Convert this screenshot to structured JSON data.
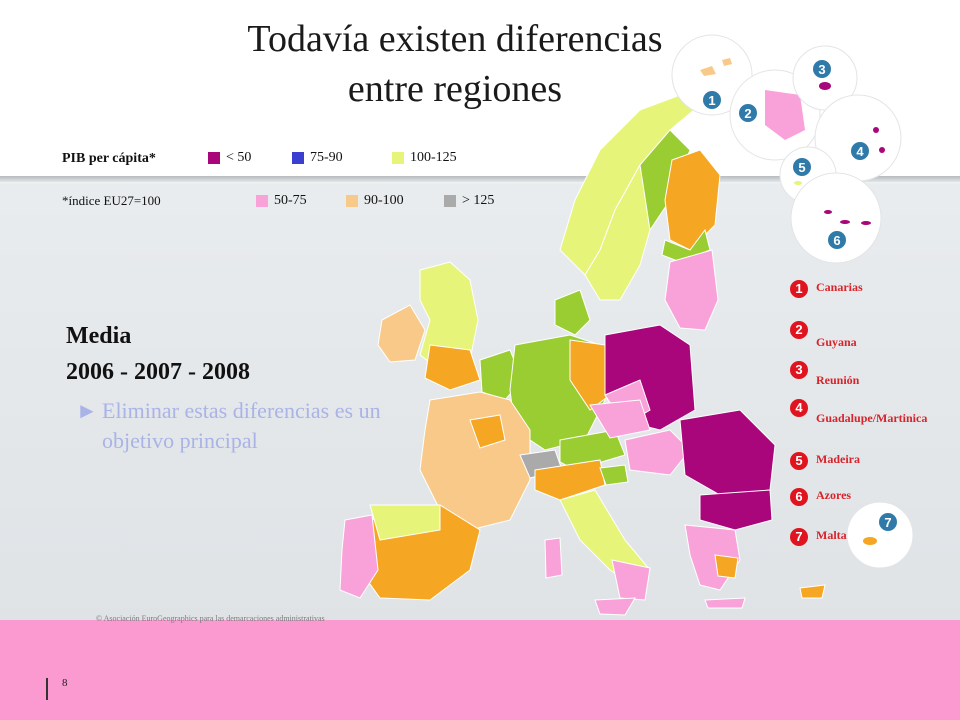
{
  "title": {
    "line1": "Todavía existen diferencias",
    "line2": "entre regiones"
  },
  "legend": {
    "heading": "PIB per cápita*",
    "note": "*índice EU27=100",
    "items": [
      {
        "label": "< 50",
        "color": "#a8067a"
      },
      {
        "label": "75-90",
        "color": "#3b3fcf"
      },
      {
        "label": "100-125",
        "color": "#e6f57a"
      },
      {
        "label": "50-75",
        "color": "#f9a2d9"
      },
      {
        "label": "90-100",
        "color": "#f9c98a"
      },
      {
        "label": "> 125",
        "color": "#aaaaaa"
      }
    ]
  },
  "media": {
    "heading": "Media",
    "years": "2006 - 2007 - 2008",
    "bullet_symbol": "►",
    "bullet_text": "Eliminar estas diferencias es un objetivo principal"
  },
  "regions": [
    {
      "num": "1",
      "label": "Canarias"
    },
    {
      "num": "2",
      "label": "Guyana"
    },
    {
      "num": "3",
      "label": "Reunión"
    },
    {
      "num": "4",
      "label": "Guadalupe/Martinica"
    },
    {
      "num": "5",
      "label": "Madeira"
    },
    {
      "num": "6",
      "label": "Azores"
    },
    {
      "num": "7",
      "label": "Malta"
    }
  ],
  "copyright": "© Asociación EuroGeographics para las demarcaciones administrativas",
  "page_number": "8"
}
